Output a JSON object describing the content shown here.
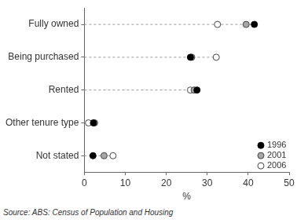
{
  "chart_data": {
    "type": "dot",
    "orientation": "horizontal",
    "categories": [
      "Fully owned",
      "Being purchased",
      "Rented",
      "Other tenure type",
      "Not stated"
    ],
    "series": [
      {
        "name": "1996",
        "color": "#000000",
        "marker": "circle",
        "values": [
          41.5,
          25.9,
          27.5,
          2.2,
          2.1
        ]
      },
      {
        "name": "2001",
        "color": "#a6a6a6",
        "marker": "circle",
        "values": [
          39.5,
          26.2,
          26.8,
          2.5,
          4.8
        ]
      },
      {
        "name": "2006",
        "color": "#ffffff",
        "marker": "circle",
        "values": [
          32.5,
          32.2,
          25.9,
          1.0,
          7.0
        ]
      }
    ],
    "xlim": [
      0,
      50
    ],
    "xticks": [
      0,
      10,
      20,
      30,
      40,
      50
    ],
    "xlabel": "%",
    "legend": "lower right",
    "grid": false,
    "source": "Source: ABS: Census of Population and Housing"
  }
}
